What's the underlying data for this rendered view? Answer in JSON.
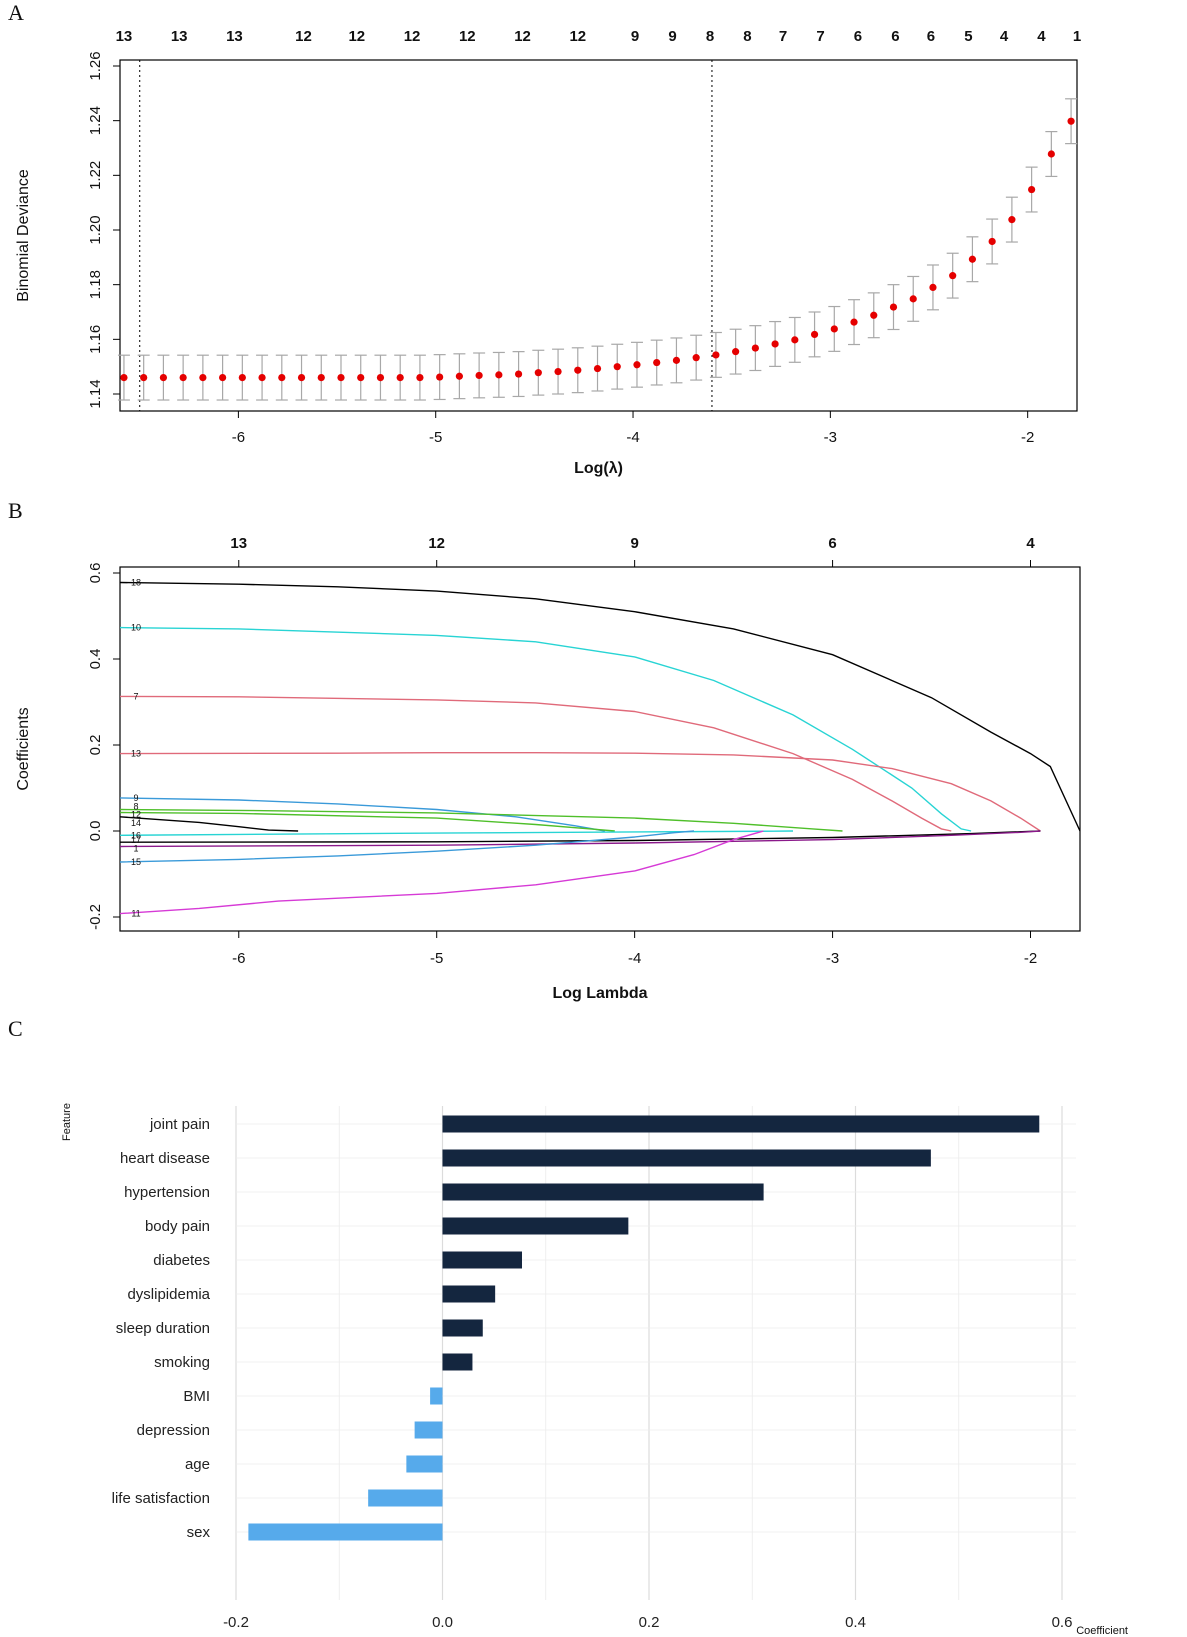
{
  "panels": {
    "a": "A",
    "b": "B",
    "c": "C"
  },
  "chart_data": [
    {
      "type": "scatter",
      "panel": "A",
      "title": "",
      "xlabel": "Log(λ)",
      "ylabel": "Binomial Deviance",
      "xlim": [
        -6.6,
        -1.75
      ],
      "ylim": [
        1.14,
        1.26
      ],
      "xticks": [
        -6,
        -5,
        -4,
        -3,
        -2
      ],
      "yticks": [
        1.14,
        1.16,
        1.18,
        1.2,
        1.22,
        1.24,
        1.26
      ],
      "ytick_labels": [
        "1.14",
        "1.16",
        "1.18",
        "1.20",
        "1.22",
        "1.24",
        "1.26"
      ],
      "top_axis": {
        "x": [
          -6.58,
          -6.3,
          -6.02,
          -5.67,
          -5.4,
          -5.12,
          -4.84,
          -4.56,
          -4.28,
          -3.99,
          -3.8,
          -3.61,
          -3.42,
          -3.24,
          -3.05,
          -2.86,
          -2.67,
          -2.49,
          -2.3,
          -2.12,
          -1.93,
          -1.75
        ],
        "labels": [
          "13",
          "13",
          "13",
          "12",
          "12",
          "12",
          "12",
          "12",
          "12",
          "9",
          "9",
          "8",
          "8",
          "7",
          "7",
          "6",
          "6",
          "6",
          "5",
          "4",
          "4",
          "1"
        ]
      },
      "vlines": [
        -6.5,
        -3.6
      ],
      "error_halfwidth": 0.0082,
      "points": {
        "x": [
          -6.58,
          -6.48,
          -6.38,
          -6.28,
          -6.18,
          -6.08,
          -5.98,
          -5.88,
          -5.78,
          -5.68,
          -5.58,
          -5.48,
          -5.38,
          -5.28,
          -5.18,
          -5.08,
          -4.98,
          -4.88,
          -4.78,
          -4.68,
          -4.58,
          -4.48,
          -4.38,
          -4.28,
          -4.18,
          -4.08,
          -3.98,
          -3.88,
          -3.78,
          -3.68,
          -3.58,
          -3.48,
          -3.38,
          -3.28,
          -3.18,
          -3.08,
          -2.98,
          -2.88,
          -2.78,
          -2.68,
          -2.58,
          -2.48,
          -2.38,
          -2.28,
          -2.18,
          -2.08,
          -1.98,
          -1.88,
          -1.78
        ],
        "y": [
          1.146,
          1.146,
          1.146,
          1.146,
          1.146,
          1.146,
          1.146,
          1.146,
          1.146,
          1.146,
          1.146,
          1.146,
          1.146,
          1.146,
          1.146,
          1.146,
          1.1462,
          1.1465,
          1.1468,
          1.147,
          1.1473,
          1.1478,
          1.1482,
          1.1487,
          1.1493,
          1.15,
          1.1507,
          1.1515,
          1.1523,
          1.1533,
          1.1543,
          1.1555,
          1.1568,
          1.1583,
          1.1598,
          1.1618,
          1.1638,
          1.1663,
          1.1688,
          1.1718,
          1.1748,
          1.179,
          1.1833,
          1.1893,
          1.1958,
          1.2038,
          1.2148,
          1.2278,
          1.2398
        ]
      }
    },
    {
      "type": "line",
      "panel": "B",
      "title": "",
      "xlabel": "Log Lambda",
      "ylabel": "Coefficients",
      "xlim": [
        -6.6,
        -1.75
      ],
      "ylim": [
        -0.2,
        0.6
      ],
      "xticks": [
        -6,
        -5,
        -4,
        -3,
        -2
      ],
      "yticks": [
        -0.2,
        0.0,
        0.2,
        0.4,
        0.6
      ],
      "ytick_labels": [
        "-0.2",
        "0.0",
        "0.2",
        "0.4",
        "0.6"
      ],
      "top_axis": {
        "x": [
          -6,
          -5,
          -4,
          -3,
          -2
        ],
        "labels": [
          "13",
          "12",
          "9",
          "6",
          "4"
        ]
      },
      "series": [
        {
          "name": "18",
          "color": "#000000",
          "x": [
            -6.6,
            -6.0,
            -5.5,
            -5.0,
            -4.5,
            -4.0,
            -3.5,
            -3.0,
            -2.5,
            -2.2,
            -2.0,
            -1.9,
            -1.75
          ],
          "values": [
            0.578,
            0.574,
            0.568,
            0.558,
            0.54,
            0.51,
            0.47,
            0.41,
            0.31,
            0.23,
            0.18,
            0.15,
            0.0
          ]
        },
        {
          "name": "10",
          "color": "#28d4d4",
          "x": [
            -6.6,
            -6.0,
            -5.0,
            -4.5,
            -4.0,
            -3.6,
            -3.2,
            -2.9,
            -2.6,
            -2.45,
            -2.35,
            -2.3
          ],
          "values": [
            0.473,
            0.47,
            0.455,
            0.44,
            0.405,
            0.35,
            0.27,
            0.19,
            0.1,
            0.04,
            0.005,
            0.0
          ]
        },
        {
          "name": "7",
          "color": "#e06a7a",
          "x": [
            -6.6,
            -6.0,
            -5.0,
            -4.5,
            -4.0,
            -3.6,
            -3.2,
            -2.9,
            -2.7,
            -2.55,
            -2.45,
            -2.4
          ],
          "values": [
            0.313,
            0.312,
            0.305,
            0.298,
            0.278,
            0.24,
            0.18,
            0.12,
            0.07,
            0.03,
            0.005,
            0.0
          ]
        },
        {
          "name": "13",
          "color": "#e06a7a",
          "x": [
            -6.6,
            -5.5,
            -5.0,
            -4.5,
            -4.0,
            -3.5,
            -3.0,
            -2.7,
            -2.4,
            -2.2,
            -2.05,
            -1.95
          ],
          "values": [
            0.18,
            0.181,
            0.182,
            0.182,
            0.181,
            0.177,
            0.165,
            0.145,
            0.11,
            0.07,
            0.03,
            0.0
          ]
        },
        {
          "name": "9",
          "color": "#3a9ad9",
          "x": [
            -6.6,
            -6.0,
            -5.5,
            -5.0,
            -4.6,
            -4.3,
            -4.15
          ],
          "values": [
            0.077,
            0.072,
            0.063,
            0.05,
            0.033,
            0.012,
            0.0
          ]
        },
        {
          "name": "8",
          "color": "#4fbf2a",
          "x": [
            -6.6,
            -6.0,
            -5.0,
            -4.0,
            -3.5,
            -3.1,
            -2.95
          ],
          "values": [
            0.05,
            0.048,
            0.042,
            0.03,
            0.018,
            0.005,
            0.0
          ]
        },
        {
          "name": "12",
          "color": "#4fbf2a",
          "x": [
            -6.6,
            -6.0,
            -5.0,
            -4.5,
            -4.2,
            -4.1
          ],
          "values": [
            0.043,
            0.041,
            0.03,
            0.015,
            0.004,
            0.0
          ]
        },
        {
          "name": "14",
          "color": "#000000",
          "x": [
            -6.6,
            -6.2,
            -6.0,
            -5.85,
            -5.7
          ],
          "values": [
            0.033,
            0.02,
            0.01,
            0.002,
            0.0
          ]
        },
        {
          "name": "16",
          "color": "#28d4d4",
          "x": [
            -6.6,
            -6.0,
            -5.0,
            -4.0,
            -3.3,
            -3.2
          ],
          "values": [
            -0.01,
            -0.008,
            -0.005,
            -0.002,
            -0.0005,
            0.0
          ]
        },
        {
          "name": "17",
          "color": "#000000",
          "x": [
            -6.6,
            -5.0,
            -4.0,
            -3.0,
            -2.3,
            -1.95
          ],
          "values": [
            -0.026,
            -0.025,
            -0.022,
            -0.015,
            -0.006,
            0.0
          ]
        },
        {
          "name": "1",
          "color": "#8b1a8b",
          "x": [
            -6.6,
            -5.0,
            -4.0,
            -3.0,
            -2.4,
            -2.05,
            -1.95
          ],
          "values": [
            -0.036,
            -0.033,
            -0.028,
            -0.02,
            -0.01,
            -0.003,
            0.0
          ]
        },
        {
          "name": "15",
          "color": "#3a9ad9",
          "x": [
            -6.6,
            -6.0,
            -5.5,
            -5.0,
            -4.5,
            -4.0,
            -3.8,
            -3.7
          ],
          "values": [
            -0.072,
            -0.066,
            -0.058,
            -0.047,
            -0.033,
            -0.014,
            -0.004,
            0.0
          ]
        },
        {
          "name": "11",
          "color": "#d63ad6",
          "x": [
            -6.6,
            -6.2,
            -5.8,
            -5.0,
            -4.5,
            -4.0,
            -3.7,
            -3.5,
            -3.35
          ],
          "values": [
            -0.192,
            -0.18,
            -0.163,
            -0.145,
            -0.125,
            -0.093,
            -0.055,
            -0.02,
            0.0
          ]
        }
      ]
    },
    {
      "type": "bar",
      "panel": "C",
      "orientation": "horizontal",
      "title": "",
      "xlabel": "Coefficient",
      "ylabel": "Feature",
      "xlim": [
        -0.2,
        0.6
      ],
      "xticks": [
        -0.2,
        0.0,
        0.2,
        0.4,
        0.6
      ],
      "xtick_labels": [
        "-0.2",
        "0.0",
        "0.2",
        "0.4",
        "0.6"
      ],
      "grid": true,
      "positive_color": "#14263f",
      "negative_color": "#56aaeb",
      "categories": [
        "joint pain",
        "heart disease",
        "hypertension",
        "body pain",
        "diabetes",
        "dyslipidemia ",
        "sleep duration",
        "smoking",
        "BMI",
        "depression",
        "age",
        "life satisfaction",
        "sex"
      ],
      "values": [
        0.578,
        0.473,
        0.311,
        0.18,
        0.077,
        0.051,
        0.039,
        0.029,
        -0.012,
        -0.027,
        -0.035,
        -0.072,
        -0.188
      ]
    }
  ]
}
